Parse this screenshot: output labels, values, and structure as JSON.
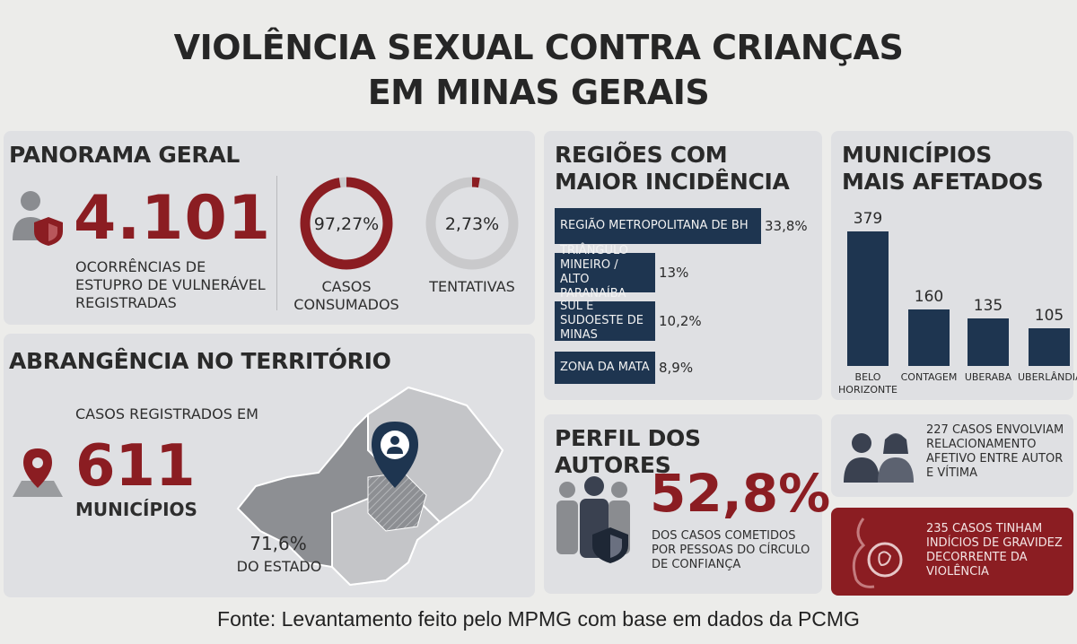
{
  "title_line1": "VIOLÊNCIA SEXUAL CONTRA CRIANÇAS",
  "title_line2": "EM MINAS GERAIS",
  "panorama": {
    "title": "PANORAMA GERAL",
    "total": "4.101",
    "total_desc": [
      "OCORRÊNCIAS DE",
      "ESTUPRO DE VULNERÁVEL",
      "REGISTRADAS"
    ],
    "consumados_label": "97,27%",
    "consumados_value": 97.27,
    "consumados_desc": [
      "CASOS",
      "CONSUMADOS"
    ],
    "tentativas_label": "2,73%",
    "tentativas_value": 2.73,
    "tentativas_desc": "TENTATIVAS"
  },
  "abrangencia": {
    "title": "ABRANGÊNCIA NO TERRITÓRIO",
    "intro": "CASOS REGISTRADOS EM",
    "count": "611",
    "unit": "MUNICÍPIOS",
    "pct": "71,6%",
    "pct_desc": "DO ESTADO"
  },
  "perfil": {
    "title": "PERFIL DOS AUTORES",
    "pct": "52,8%",
    "desc": [
      "DOS CASOS COMETIDOS",
      "POR PESSOAS DO CÍRCULO",
      "DE CONFIANÇA"
    ]
  },
  "relacionamento": [
    "227 CASOS ENVOLVIAM",
    "RELACIONAMENTO",
    "AFETIVO ENTRE AUTOR",
    "E VÍTIMA"
  ],
  "gravidez": [
    "235 CASOS TINHAM",
    "INDÍCIOS DE GRAVIDEZ",
    "DECORRENTE DA",
    "VIOLÊNCIA"
  ],
  "source": "Fonte: Levantamento feito pelo MPMG com base em dados da PCMG",
  "colors": {
    "accent": "#8b1d22",
    "navy": "#1e3550",
    "panel": "#dfe0e3"
  },
  "chart_data": [
    {
      "type": "bar",
      "title": "REGIÕES COM MAIOR INCIDÊNCIA",
      "orientation": "horizontal",
      "categories": [
        "REGIÃO METROPOLITANA DE BH",
        "TRIÂNGULO MINEIRO / ALTO PARANAÍBA",
        "SUL E SUDOESTE DE MINAS",
        "ZONA DA MATA"
      ],
      "category_lines": [
        [
          "REGIÃO METROPOLITANA DE BH"
        ],
        [
          "TRIÂNGULO MINEIRO /",
          "ALTO PARANAÍBA"
        ],
        [
          "SUL E SUDOESTE DE",
          "MINAS"
        ],
        [
          "ZONA DA MATA"
        ]
      ],
      "values": [
        33.8,
        13,
        10.2,
        8.9
      ],
      "value_labels": [
        "33,8%",
        "13%",
        "10,2%",
        "8,9%"
      ]
    },
    {
      "type": "bar",
      "title": "MUNICÍPIOS MAIS AFETADOS",
      "categories": [
        "BELO HORIZONTE",
        "CONTAGEM",
        "UBERABA",
        "UBERLÂNDIA"
      ],
      "category_lines": [
        [
          "BELO",
          "HORIZONTE"
        ],
        [
          "CONTAGEM"
        ],
        [
          "UBERABA"
        ],
        [
          "UBERLÂNDIA"
        ]
      ],
      "values": [
        379,
        160,
        135,
        105
      ],
      "value_labels": [
        "379",
        "160",
        "135",
        "105"
      ]
    }
  ]
}
